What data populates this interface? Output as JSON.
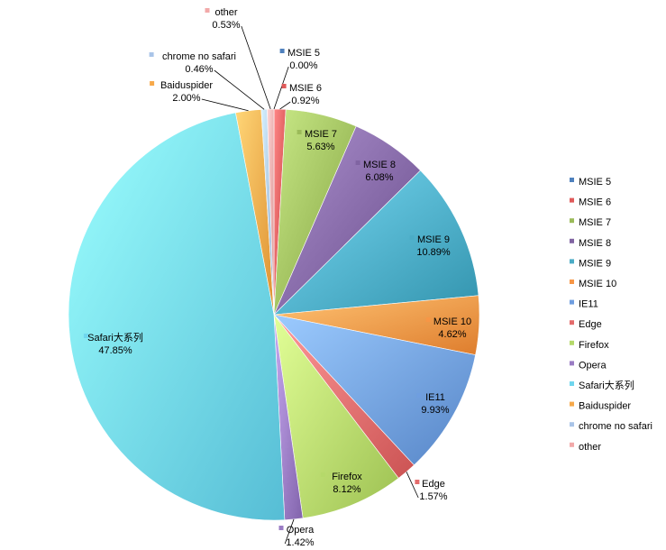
{
  "chart_data": {
    "type": "pie",
    "title": "",
    "slices": [
      {
        "name": "MSIE 5",
        "value": 0.0,
        "label": "0.00%",
        "color": "#4f81bd"
      },
      {
        "name": "MSIE 6",
        "value": 0.92,
        "label": "0.92%",
        "color": "#e05a5a"
      },
      {
        "name": "MSIE 7",
        "value": 5.63,
        "label": "5.63%",
        "color": "#9bbb59"
      },
      {
        "name": "MSIE 8",
        "value": 6.08,
        "label": "6.08%",
        "color": "#8064a2"
      },
      {
        "name": "MSIE 9",
        "value": 10.89,
        "label": "10.89%",
        "color": "#4bacc6"
      },
      {
        "name": "MSIE 10",
        "value": 4.62,
        "label": "4.62%",
        "color": "#f79646"
      },
      {
        "name": "IE11",
        "value": 9.93,
        "label": "9.93%",
        "color": "#6f9ee0"
      },
      {
        "name": "Edge",
        "value": 1.57,
        "label": "1.57%",
        "color": "#e46c6c"
      },
      {
        "name": "Firefox",
        "value": 8.12,
        "label": "8.12%",
        "color": "#b5d96a"
      },
      {
        "name": "Opera",
        "value": 1.42,
        "label": "1.42%",
        "color": "#9a7cc4"
      },
      {
        "name": "Safari大系列",
        "value": 47.85,
        "label": "47.85%",
        "color": "#6fd6ee"
      },
      {
        "name": "Baiduspider",
        "value": 2.0,
        "label": "2.00%",
        "color": "#f7a94a"
      },
      {
        "name": "chrome no safari",
        "value": 0.46,
        "label": "0.46%",
        "color": "#a9c4e8"
      },
      {
        "name": "other",
        "value": 0.53,
        "label": "0.53%",
        "color": "#f2a9a9"
      }
    ],
    "legend": {
      "placement": "right",
      "entries": [
        "MSIE 5",
        "MSIE 6",
        "MSIE 7",
        "MSIE 8",
        "MSIE 9",
        "MSIE 10",
        "IE11",
        "Edge",
        "Firefox",
        "Opera",
        "Safari大系列",
        "Baiduspider",
        "chrome no safari",
        "other"
      ]
    }
  }
}
